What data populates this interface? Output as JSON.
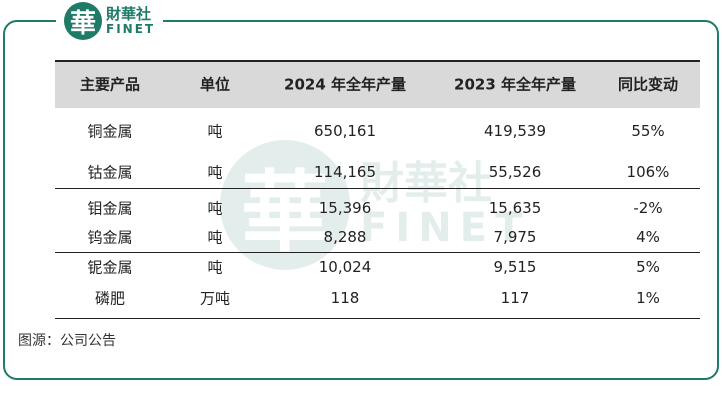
{
  "logo": {
    "name": "財華社",
    "sub": "FINET",
    "mark": "華"
  },
  "table": {
    "header": [
      "主要产品",
      "单位",
      "2024 年全年产量",
      "2023 年全年产量",
      "同比变动"
    ],
    "rows": [
      [
        "铜金属",
        "吨",
        "650,161",
        "419,539",
        "55%"
      ],
      [
        "钴金属",
        "吨",
        "114,165",
        "55,526",
        "106%"
      ],
      [
        "钼金属",
        "吨",
        "15,396",
        "15,635",
        "-2%"
      ],
      [
        "钨金属",
        "吨",
        "8,288",
        "7,975",
        "4%"
      ],
      [
        "铌金属",
        "吨",
        "10,024",
        "9,515",
        "5%"
      ],
      [
        "磷肥",
        "万吨",
        "118",
        "117",
        "1%"
      ]
    ]
  },
  "source": "图源：公司公告"
}
